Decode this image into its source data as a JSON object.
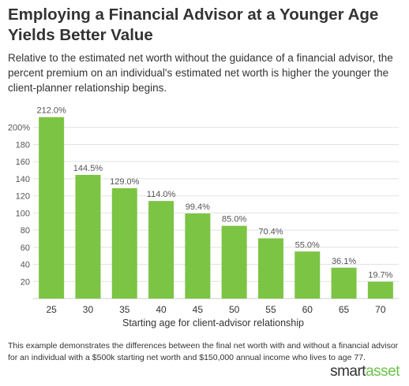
{
  "title": "Employing a Financial Advisor at a Younger Age Yields Better Value",
  "subtitle": "Relative to the estimated net worth without the guidance of a financial advisor, the percent premium on an individual's estimated net worth is higher the younger the client-planner relationship begins.",
  "footnote": "This example demonstrates the differences between the final net worth with and without a financial advisor for an individual with a $500k starting net worth and $150,000 annual income who lives to age 77.",
  "brand": {
    "part1": "smart",
    "part2": "asset"
  },
  "colors": {
    "bar": "#7cc444",
    "grid": "#e2e2e2",
    "text": "#555555",
    "brand_accent": "#6cc24a"
  },
  "chart_data": {
    "type": "bar",
    "categories": [
      "25",
      "30",
      "35",
      "40",
      "45",
      "50",
      "55",
      "60",
      "65",
      "70"
    ],
    "values": [
      212.0,
      144.5,
      129.0,
      114.0,
      99.4,
      85.0,
      70.4,
      55.0,
      36.1,
      19.7
    ],
    "data_labels": [
      "212.0%",
      "144.5%",
      "129.0%",
      "114.0%",
      "99.4%",
      "85.0%",
      "70.4%",
      "55.0%",
      "36.1%",
      "19.7%"
    ],
    "y_ticks": [
      20,
      40,
      60,
      80,
      100,
      120,
      140,
      160,
      180,
      200
    ],
    "y_tick_labels": [
      "20",
      "40",
      "60",
      "80",
      "100",
      "120",
      "140",
      "160",
      "180",
      "200%"
    ],
    "xlabel": "Starting age for client-advisor relationship",
    "ylabel": "",
    "ylim": [
      0,
      220
    ],
    "grid": true
  }
}
